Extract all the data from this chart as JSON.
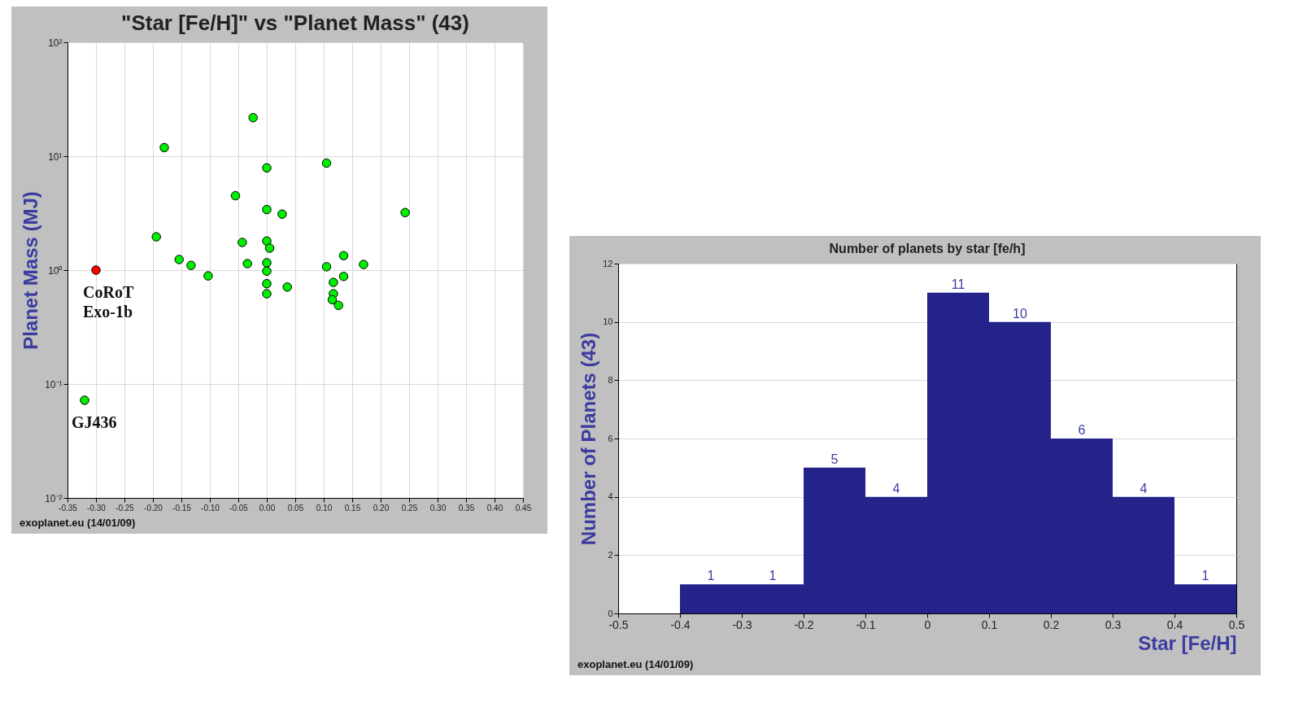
{
  "chart_data": [
    {
      "type": "scatter",
      "title": "\"Star [Fe/H]\"  vs \"Planet Mass\" (43)",
      "ylabel": "Planet Mass (MJ)",
      "log": "y",
      "grid": true,
      "marker": "circle",
      "xlim": [
        -0.35,
        0.45
      ],
      "xticks": [
        -0.35,
        {
          "value": -0.3,
          "label": "-0.30"
        },
        -0.25,
        {
          "value": -0.2,
          "label": "-0.20"
        },
        -0.15,
        {
          "value": -0.1,
          "label": "-0.10"
        },
        -0.05,
        {
          "value": 0,
          "label": "0.00"
        },
        0.05,
        {
          "value": 0.1,
          "label": "0.10"
        },
        0.15,
        {
          "value": 0.2,
          "label": "0.20"
        },
        0.25,
        {
          "value": 0.3,
          "label": "0.30"
        },
        0.35,
        {
          "value": 0.4,
          "label": "0.40"
        },
        0.45
      ],
      "ylim": [
        0.01,
        100
      ],
      "yticks": [
        {
          "value": 0.01,
          "label": "10⁻²"
        },
        {
          "value": 0.1,
          "label": "10⁻¹"
        },
        {
          "value": 1,
          "label": "10⁰"
        },
        {
          "value": 10,
          "label": "10¹"
        },
        {
          "value": 100,
          "label": "10²"
        }
      ],
      "series": [
        {
          "color": "#00ee00",
          "x": [
            -0.18,
            -0.024,
            0,
            0.105,
            -0.055,
            0,
            0.027,
            -0.194,
            -0.043,
            0,
            0.005,
            -0.154,
            -0.133,
            -0.103,
            -0.034,
            0,
            0,
            0,
            0,
            0.036,
            0.105,
            0.135,
            0.135,
            0.117,
            0.117,
            0.115,
            0.126,
            0.17,
            0.243,
            -0.32
          ],
          "values": [
            11.9,
            21.8,
            7.9,
            8.7,
            4.5,
            3.4,
            3.1,
            1.96,
            1.75,
            1.8,
            1.56,
            1.24,
            1.1,
            0.89,
            1.14,
            1.16,
            0.98,
            0.76,
            0.62,
            0.71,
            1.07,
            1.34,
            0.88,
            0.78,
            0.62,
            0.55,
            0.49,
            1.12,
            3.2,
            0.072
          ]
        },
        {
          "color": "#ff0000",
          "x": [
            -0.3
          ],
          "values": [
            1.0
          ]
        }
      ],
      "annotations": [
        {
          "text": "CoRoT Exo-1b",
          "x": -0.3,
          "y": 1.0
        },
        {
          "text": "GJ436",
          "x": -0.32,
          "y": 0.072
        },
        "exoplanet.eu (14/01/09)"
      ]
    },
    {
      "type": "histogram",
      "title": "Number of planets by star [fe/h]",
      "xlabel": "Star [Fe/H]",
      "ylabel": "Number of Planets (43)",
      "grid": "y",
      "bins": [
        -0.5,
        -0.4,
        -0.3,
        -0.2,
        -0.1,
        0,
        0.1,
        0.2,
        0.3,
        0.4,
        0.5
      ],
      "values": [
        0,
        1,
        1,
        5,
        4,
        11,
        10,
        6,
        4,
        1
      ],
      "color": "#23238a",
      "value_labels": [
        null,
        "1",
        "1",
        "5",
        "4",
        "11",
        "10",
        "6",
        "4",
        "1"
      ],
      "xlim": [
        -0.5,
        0.5
      ],
      "xticks": [
        -0.5,
        -0.4,
        -0.3,
        -0.2,
        -0.1,
        0,
        0.1,
        0.2,
        0.3,
        0.4,
        0.5
      ],
      "ylim": [
        0,
        12
      ],
      "yticks": [
        0,
        2,
        4,
        6,
        8,
        10,
        12
      ],
      "annotations": [
        "exoplanet.eu (14/01/09)"
      ]
    }
  ]
}
